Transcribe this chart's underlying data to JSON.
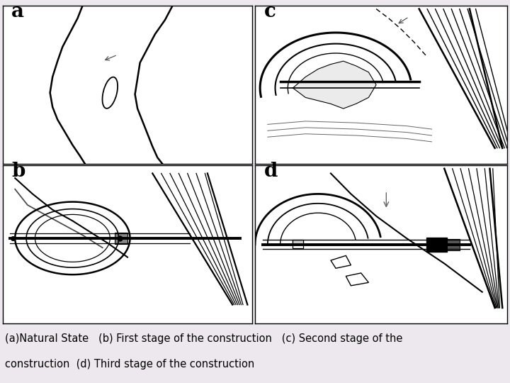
{
  "caption_line1": "(a)Natural State   (b) First stage of the construction   (c) Second stage of the",
  "caption_line2": "construction  (d) Third stage of the construction",
  "background_color": "#ede8ed",
  "panel_bg": "#ffffff",
  "border_color": "#000000",
  "label_a": "a",
  "label_b": "b",
  "label_c": "c",
  "label_d": "d",
  "caption_fontsize": 10.5,
  "label_fontsize": 20,
  "fig_width": 7.2,
  "fig_height": 5.4,
  "dpi": 100
}
